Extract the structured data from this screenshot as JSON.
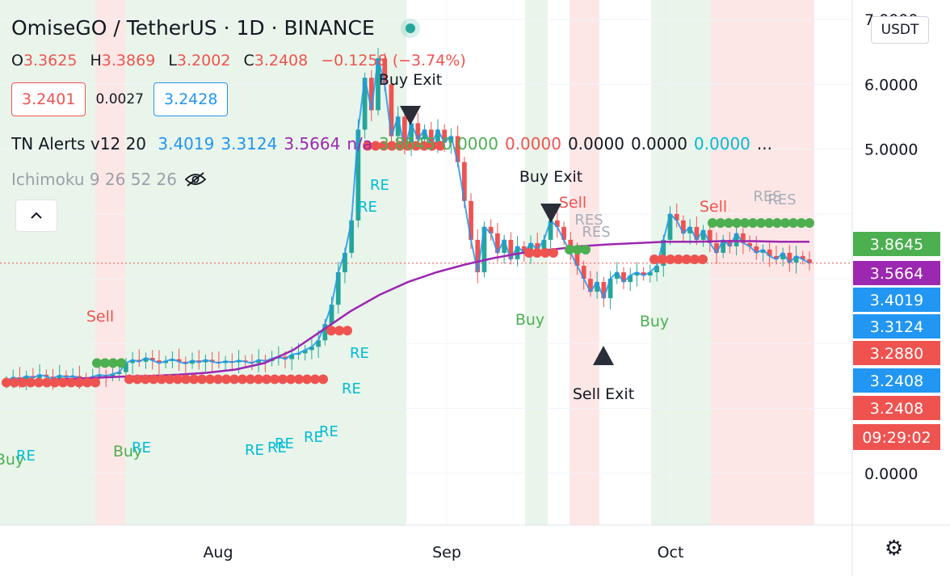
{
  "header": {
    "symbol_title": "OmiseGO / TetherUS · 1D · BINANCE",
    "ohlc": [
      {
        "k": "O",
        "v": "3.3625"
      },
      {
        "k": "H",
        "v": "3.3869"
      },
      {
        "k": "L",
        "v": "3.2002"
      },
      {
        "k": "C",
        "v": "3.2408"
      }
    ],
    "change": "−0.1258 (−3.74%)",
    "sell_price": "3.2401",
    "spread": "0.0027",
    "buy_price": "3.2428",
    "currency_button": "USDT"
  },
  "indicators": {
    "tn_name": "TN Alerts v12 20",
    "tn_values": [
      {
        "v": "3.4019",
        "color": "#2196f3"
      },
      {
        "v": "3.3124",
        "color": "#2196f3"
      },
      {
        "v": "3.5664",
        "color": "#9c27b0"
      },
      {
        "v": "n/a",
        "color": "#9c27b0"
      },
      {
        "v": "3.8645",
        "color": "#4caf50"
      },
      {
        "v": "0.0000",
        "color": "#4caf50"
      },
      {
        "v": "0.0000",
        "color": "#ef5350"
      },
      {
        "v": "0.0000",
        "color": "#131722"
      },
      {
        "v": "0.0000",
        "color": "#131722"
      },
      {
        "v": "0.0000",
        "color": "#00bcd4"
      },
      {
        "v": "...",
        "color": "#131722"
      }
    ],
    "ichimoku": "Ichimoku 9 26 52 26"
  },
  "chart_data": {
    "type": "candlestick",
    "x_labels": [
      "Aug",
      "Sep",
      "Oct"
    ],
    "y_ticks": [
      "7.0000",
      "6.0000",
      "5.0000",
      "0.0000"
    ],
    "y_range": [
      -0.8,
      7.3
    ],
    "current_price": 3.2408,
    "price_tags": [
      {
        "label": "3.8645",
        "value": 3.8645,
        "color": "#4caf50"
      },
      {
        "label": "3.5664",
        "value": 3.5664,
        "color": "#9c27b0"
      },
      {
        "label": "3.4019",
        "value": 3.4019,
        "color": "#2196f3"
      },
      {
        "label": "3.3124",
        "value": 3.3124,
        "color": "#2196f3"
      },
      {
        "label": "3.2880",
        "value": 3.288,
        "color": "#ef5350"
      },
      {
        "label": "3.2408",
        "value": 3.2408,
        "color": "#2196f3"
      },
      {
        "label": "3.2408",
        "value": 3.2408,
        "color": "#ef5350"
      }
    ],
    "countdown": "09:29:02",
    "close_series": [
      1.42,
      1.48,
      1.45,
      1.5,
      1.47,
      1.52,
      1.49,
      1.46,
      1.51,
      1.48,
      1.5,
      1.47,
      1.45,
      1.49,
      1.52,
      1.5,
      1.53,
      1.56,
      1.7,
      1.75,
      1.72,
      1.78,
      1.74,
      1.7,
      1.73,
      1.76,
      1.72,
      1.69,
      1.74,
      1.71,
      1.75,
      1.72,
      1.7,
      1.73,
      1.71,
      1.74,
      1.72,
      1.7,
      1.75,
      1.73,
      1.77,
      1.8,
      1.76,
      1.83,
      1.85,
      1.9,
      1.95,
      2.05,
      2.3,
      2.6,
      3.1,
      3.4,
      3.9,
      5.3,
      6.1,
      5.6,
      6.4,
      6.0,
      5.2,
      5.5,
      5.0,
      5.4,
      5.15,
      5.3,
      5.05,
      5.3,
      5.1,
      5.2,
      4.8,
      4.2,
      3.6,
      3.1,
      3.8,
      3.7,
      3.4,
      3.6,
      3.3,
      3.5,
      3.4,
      3.55,
      3.45,
      3.6,
      3.9,
      3.8,
      3.6,
      3.4,
      3.2,
      3.0,
      2.8,
      2.95,
      2.7,
      3.0,
      3.1,
      2.95,
      3.05,
      3.1,
      3.05,
      3.1,
      3.2,
      3.6,
      4.0,
      3.9,
      3.7,
      3.8,
      3.6,
      3.75,
      3.55,
      3.4,
      3.6,
      3.5,
      3.7,
      3.55,
      3.5,
      3.4,
      3.45,
      3.35,
      3.3,
      3.4,
      3.25,
      3.35,
      3.3,
      3.24
    ],
    "ma_series": [
      1.4,
      1.42,
      1.45,
      1.47,
      1.49,
      1.5,
      1.52,
      1.55,
      1.6,
      1.7,
      1.9,
      2.2,
      2.5,
      2.75,
      2.95,
      3.1,
      3.22,
      3.32,
      3.4,
      3.45,
      3.5,
      3.53,
      3.55,
      3.57,
      3.57,
      3.58,
      3.58,
      3.57,
      3.57
    ],
    "signals": [
      {
        "text": "Buy Exit",
        "color": "#131722",
        "marker": "down"
      },
      {
        "text": "Buy Exit",
        "color": "#131722",
        "marker": "down"
      },
      {
        "text": "Sell Exit",
        "color": "#131722",
        "marker": "up"
      },
      {
        "text": "Sell",
        "color": "#ef5350"
      },
      {
        "text": "Sell",
        "color": "#ef5350"
      },
      {
        "text": "Sell",
        "color": "#ef5350"
      },
      {
        "text": "Buy",
        "color": "#4caf50"
      },
      {
        "text": "Buy",
        "color": "#4caf50"
      },
      {
        "text": "Buy",
        "color": "#4caf50"
      },
      {
        "text": "Buy",
        "color": "#4caf50"
      },
      {
        "text": "RE",
        "color": "#00bcd4"
      },
      {
        "text": "RES",
        "color": "#a7adb8"
      }
    ]
  }
}
